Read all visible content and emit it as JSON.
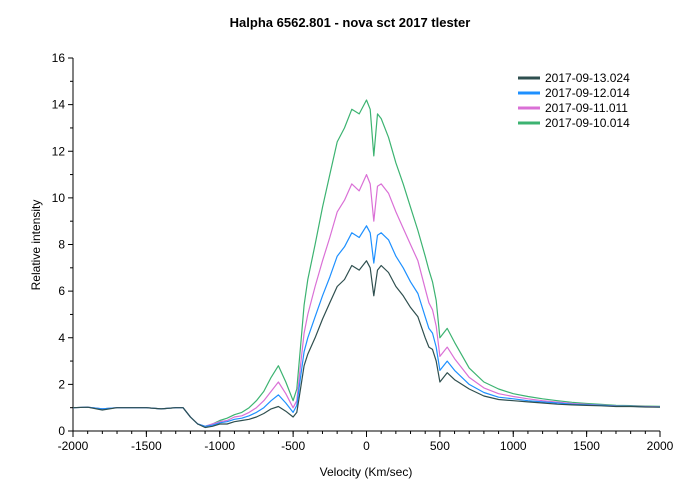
{
  "chart_data": {
    "type": "line",
    "title": "Halpha 6562.801 - nova sct 2017   tlester",
    "xlabel": "Velocity (Km/sec)",
    "ylabel": "Relative intensity",
    "xlim": [
      -2000,
      2000
    ],
    "ylim": [
      0,
      16
    ],
    "xticks": [
      -2000,
      -1500,
      -1000,
      -500,
      0,
      500,
      1000,
      1500,
      2000
    ],
    "xtick_labels": [
      "-2000",
      "-1500",
      "-1000",
      "-500",
      "0",
      "500",
      "1000",
      "1500",
      "2000"
    ],
    "yticks": [
      0,
      2,
      4,
      6,
      8,
      10,
      12,
      14,
      16
    ],
    "ytick_labels": [
      "0",
      "2",
      "4",
      "6",
      "8",
      "10",
      "12",
      "14",
      "16"
    ],
    "grid": false,
    "legend_position": "top-right",
    "x": [
      -2000,
      -1900,
      -1800,
      -1700,
      -1600,
      -1500,
      -1400,
      -1300,
      -1250,
      -1200,
      -1150,
      -1100,
      -1050,
      -1000,
      -950,
      -900,
      -850,
      -800,
      -750,
      -700,
      -650,
      -600,
      -550,
      -500,
      -475,
      -450,
      -425,
      -400,
      -350,
      -300,
      -250,
      -200,
      -150,
      -100,
      -50,
      0,
      25,
      50,
      75,
      100,
      150,
      200,
      250,
      300,
      350,
      400,
      425,
      450,
      475,
      500,
      550,
      600,
      700,
      800,
      900,
      1000,
      1100,
      1200,
      1300,
      1400,
      1500,
      1600,
      1700,
      1800,
      1900,
      2000
    ],
    "series": [
      {
        "name": "2017-09-13.024",
        "color": "#2f4f4f",
        "values": [
          1.0,
          1.02,
          0.9,
          1.0,
          1.0,
          1.0,
          0.95,
          1.0,
          1.0,
          0.6,
          0.3,
          0.15,
          0.2,
          0.3,
          0.3,
          0.4,
          0.45,
          0.5,
          0.6,
          0.75,
          0.95,
          1.05,
          0.85,
          0.6,
          0.8,
          1.8,
          2.8,
          3.3,
          4.0,
          4.8,
          5.5,
          6.2,
          6.5,
          7.1,
          6.9,
          7.3,
          7.0,
          5.8,
          6.9,
          7.1,
          6.8,
          6.2,
          5.8,
          5.3,
          4.9,
          4.0,
          3.6,
          3.5,
          3.0,
          2.1,
          2.5,
          2.2,
          1.8,
          1.5,
          1.35,
          1.3,
          1.25,
          1.2,
          1.15,
          1.12,
          1.1,
          1.08,
          1.05,
          1.05,
          1.03,
          1.02
        ]
      },
      {
        "name": "2017-09-12.014",
        "color": "#1e90ff",
        "values": [
          1.0,
          1.02,
          0.95,
          1.0,
          1.0,
          1.0,
          0.95,
          1.0,
          1.0,
          0.6,
          0.3,
          0.2,
          0.25,
          0.35,
          0.4,
          0.5,
          0.55,
          0.65,
          0.8,
          1.0,
          1.3,
          1.55,
          1.2,
          0.8,
          1.1,
          2.3,
          3.4,
          4.0,
          4.9,
          5.8,
          6.6,
          7.5,
          7.9,
          8.5,
          8.3,
          8.8,
          8.5,
          7.2,
          8.4,
          8.5,
          8.2,
          7.5,
          7.0,
          6.4,
          5.9,
          4.9,
          4.4,
          4.2,
          3.6,
          2.6,
          3.0,
          2.6,
          2.0,
          1.65,
          1.45,
          1.38,
          1.3,
          1.25,
          1.2,
          1.15,
          1.12,
          1.1,
          1.07,
          1.06,
          1.04,
          1.03
        ]
      },
      {
        "name": "2017-09-11.011",
        "color": "#da70d6",
        "values": [
          1.0,
          1.02,
          0.95,
          1.0,
          1.0,
          1.0,
          0.95,
          1.0,
          1.0,
          0.6,
          0.3,
          0.2,
          0.3,
          0.4,
          0.45,
          0.6,
          0.65,
          0.8,
          1.0,
          1.3,
          1.7,
          2.1,
          1.6,
          1.0,
          1.3,
          2.8,
          4.2,
          5.0,
          6.2,
          7.3,
          8.3,
          9.4,
          9.9,
          10.6,
          10.3,
          11.0,
          10.6,
          9.0,
          10.5,
          10.6,
          10.2,
          9.4,
          8.7,
          8.0,
          7.3,
          6.1,
          5.5,
          5.2,
          4.5,
          3.2,
          3.6,
          3.1,
          2.3,
          1.85,
          1.6,
          1.48,
          1.38,
          1.3,
          1.24,
          1.18,
          1.14,
          1.11,
          1.08,
          1.07,
          1.05,
          1.04
        ]
      },
      {
        "name": "2017-09-10.014",
        "color": "#3cb371",
        "values": [
          1.0,
          1.02,
          0.95,
          1.0,
          1.0,
          1.0,
          0.95,
          1.0,
          1.0,
          0.6,
          0.3,
          0.2,
          0.3,
          0.45,
          0.55,
          0.7,
          0.8,
          1.0,
          1.3,
          1.7,
          2.3,
          2.8,
          2.1,
          1.3,
          1.8,
          3.6,
          5.4,
          6.5,
          8.0,
          9.6,
          11.0,
          12.4,
          13.0,
          13.8,
          13.6,
          14.2,
          13.8,
          11.8,
          13.6,
          13.4,
          12.6,
          11.5,
          10.6,
          9.6,
          8.6,
          7.5,
          6.9,
          6.4,
          5.6,
          4.0,
          4.4,
          3.8,
          2.7,
          2.1,
          1.8,
          1.6,
          1.48,
          1.38,
          1.3,
          1.23,
          1.18,
          1.14,
          1.1,
          1.09,
          1.07,
          1.06
        ]
      }
    ]
  }
}
